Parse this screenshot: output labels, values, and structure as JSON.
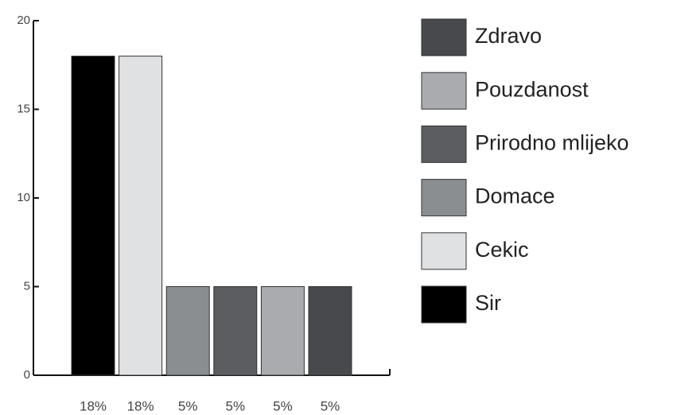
{
  "chart_data": {
    "type": "bar",
    "series": [
      {
        "name": "Sir",
        "color": "#000000",
        "values": [
          18
        ],
        "value_labels": [
          "18%"
        ]
      },
      {
        "name": "Cekic",
        "color": "#e0e1e2",
        "values": [
          18
        ],
        "value_labels": [
          "18%"
        ]
      },
      {
        "name": "Domace",
        "color": "#8b8e91",
        "values": [
          5
        ],
        "value_labels": [
          "5%"
        ]
      },
      {
        "name": "Prirodno mlijeko",
        "color": "#5b5d61",
        "values": [
          5
        ],
        "value_labels": [
          "5%"
        ]
      },
      {
        "name": "Pouzdanost",
        "color": "#a9abae",
        "values": [
          5
        ],
        "value_labels": [
          "5%"
        ]
      },
      {
        "name": "Zdravo",
        "color": "#47494c",
        "values": [
          5
        ],
        "value_labels": [
          "5%"
        ]
      }
    ],
    "ylim": [
      0,
      20
    ],
    "yticks": [
      0,
      5,
      10,
      15,
      20
    ]
  }
}
